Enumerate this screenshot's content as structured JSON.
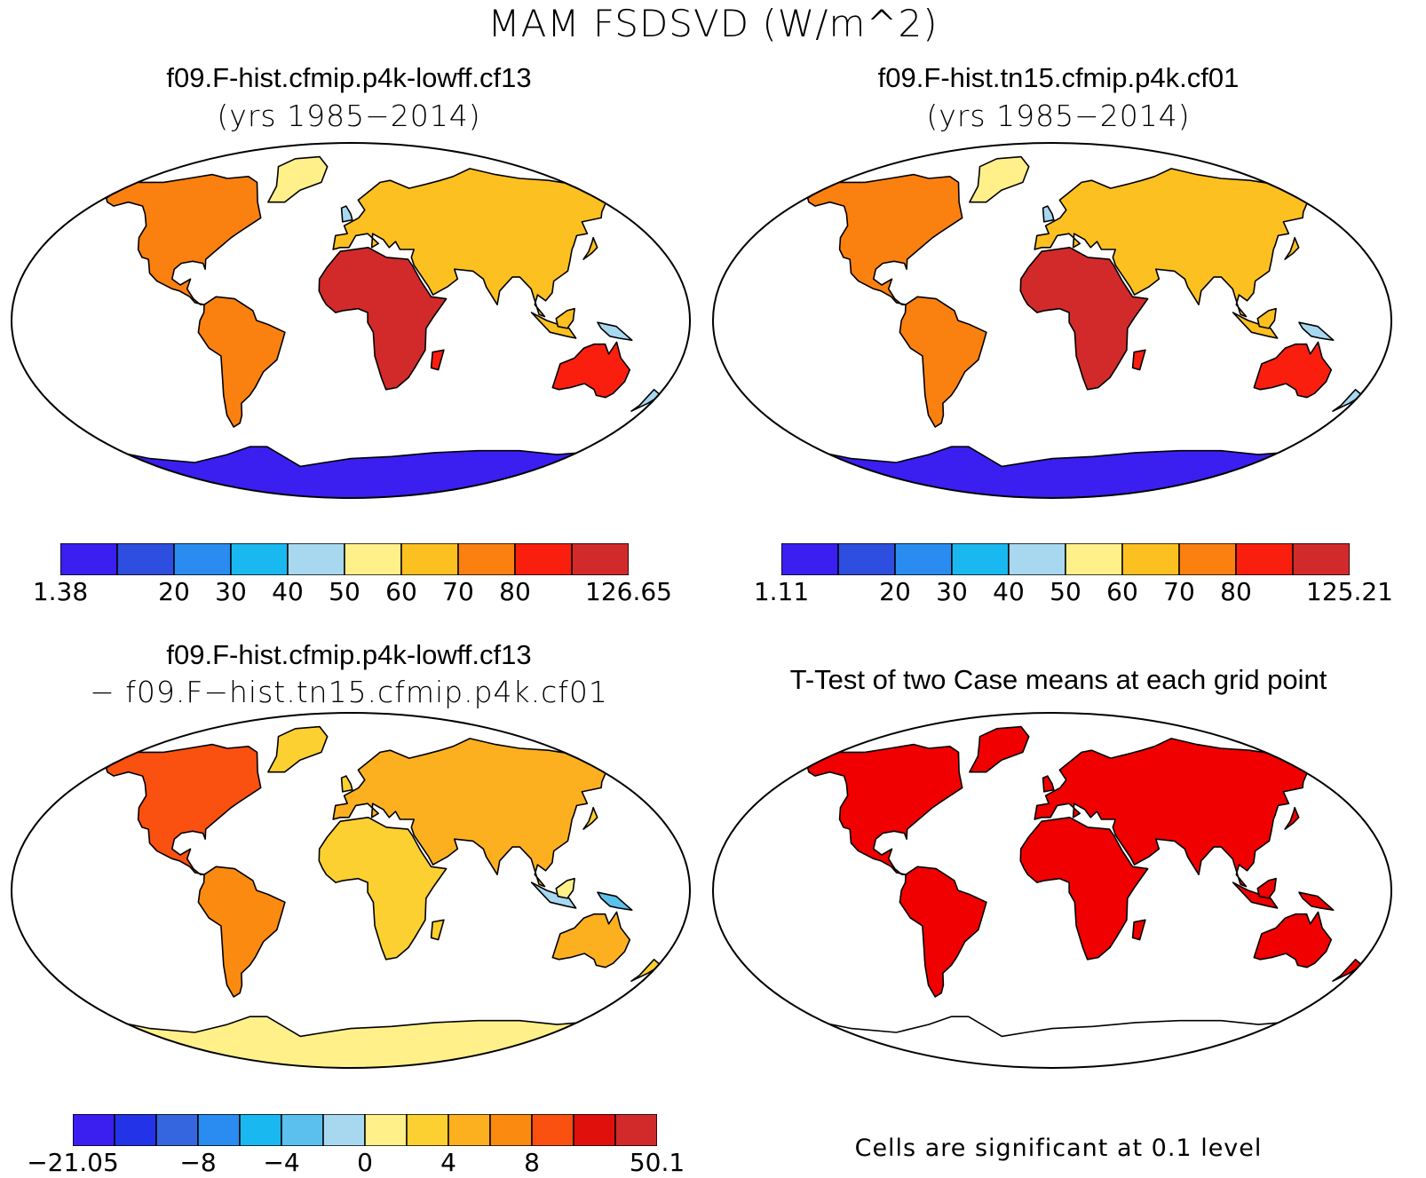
{
  "figure": {
    "title": "MAM FSDSVD (W/m^2)"
  },
  "panels": [
    {
      "title": "f09.F-hist.cfmip.p4k-lowff.cf13",
      "subtitle": "(yrs 1985−2014)",
      "kind": "field"
    },
    {
      "title": "f09.F-hist.tn15.cfmip.p4k.cf01",
      "subtitle": "(yrs 1985−2014)",
      "kind": "field"
    },
    {
      "title": "f09.F-hist.cfmip.p4k-lowff.cf13",
      "subtitle": "− f09.F−hist.tn15.cfmip.p4k.cf01",
      "kind": "difference"
    },
    {
      "title": "T-Test of two Case means at each grid point",
      "subtitle": "",
      "kind": "ttest"
    }
  ],
  "colorbars": {
    "field_a": {
      "colors": [
        "#3b1ef0",
        "#2e4ee0",
        "#2a8cf0",
        "#1ab8f0",
        "#a8d8f0",
        "#fff08a",
        "#fcc020",
        "#fa8010",
        "#fa1e0e",
        "#d22a2a"
      ],
      "labels": [
        {
          "text": "1.38",
          "edge": 0
        },
        {
          "text": "20",
          "edge": 2
        },
        {
          "text": "30",
          "edge": 3
        },
        {
          "text": "40",
          "edge": 4
        },
        {
          "text": "50",
          "edge": 5
        },
        {
          "text": "60",
          "edge": 6
        },
        {
          "text": "70",
          "edge": 7
        },
        {
          "text": "80",
          "edge": 8
        },
        {
          "text": "126.65",
          "edge": 10
        }
      ]
    },
    "field_b": {
      "colors": [
        "#3b1ef0",
        "#2e4ee0",
        "#2a8cf0",
        "#1ab8f0",
        "#a8d8f0",
        "#fff08a",
        "#fcc020",
        "#fa8010",
        "#fa1e0e",
        "#d22a2a"
      ],
      "labels": [
        {
          "text": "1.11",
          "edge": 0
        },
        {
          "text": "20",
          "edge": 2
        },
        {
          "text": "30",
          "edge": 3
        },
        {
          "text": "40",
          "edge": 4
        },
        {
          "text": "50",
          "edge": 5
        },
        {
          "text": "60",
          "edge": 6
        },
        {
          "text": "70",
          "edge": 7
        },
        {
          "text": "80",
          "edge": 8
        },
        {
          "text": "125.21",
          "edge": 10
        }
      ]
    },
    "difference": {
      "colors": [
        "#3b1ef0",
        "#2233e8",
        "#3566e0",
        "#2a8cf0",
        "#1ab8f0",
        "#5cc0ee",
        "#a8d8f0",
        "#fff08a",
        "#fcd030",
        "#fcb020",
        "#fa8a10",
        "#fa5010",
        "#e0100c",
        "#d22a2a"
      ],
      "labels": [
        {
          "text": "−21.05",
          "edge": 0
        },
        {
          "text": "−8",
          "edge": 3
        },
        {
          "text": "−4",
          "edge": 5
        },
        {
          "text": "0",
          "edge": 7
        },
        {
          "text": "4",
          "edge": 9
        },
        {
          "text": "8",
          "edge": 11
        },
        {
          "text": "50.1",
          "edge": 14
        }
      ]
    }
  },
  "ttest_note": "Cells are significant at 0.1 level",
  "map_colors": {
    "ocean": "#ffffff",
    "coast": "#000000",
    "significant": "#f00000"
  }
}
